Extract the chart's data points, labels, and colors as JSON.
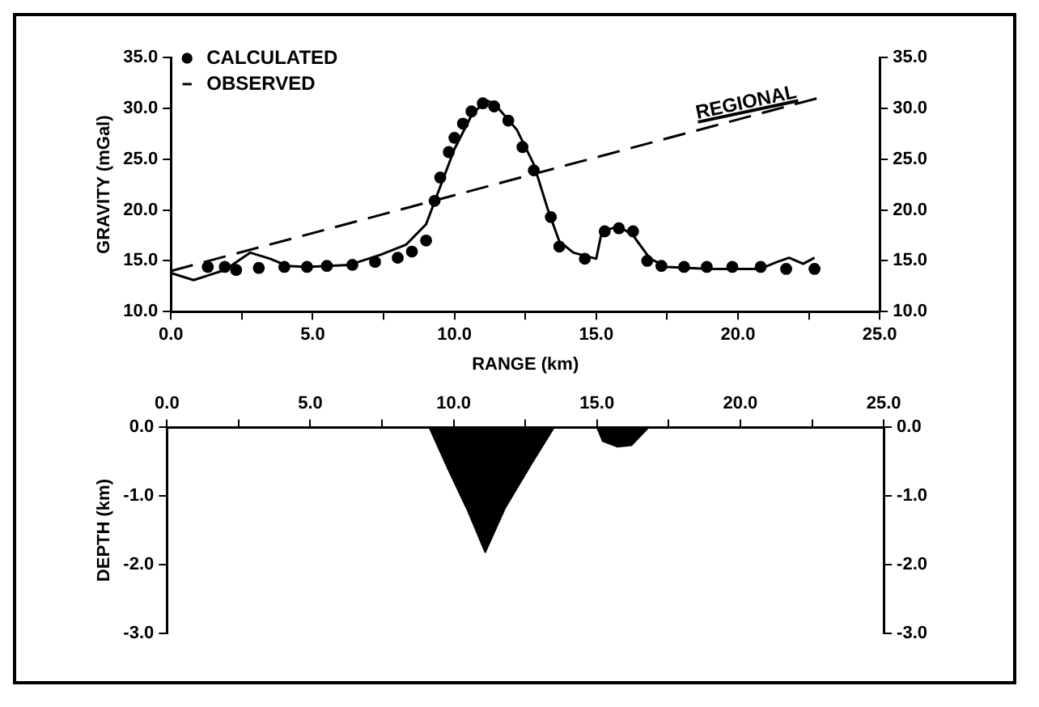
{
  "chart_data": [
    {
      "type": "line",
      "xlabel": "RANGE (km)",
      "ylabel": "GRAVITY (mGal)",
      "xlim": [
        0,
        25
      ],
      "xticks": [
        {
          "value": 0,
          "label": "0.0"
        },
        {
          "value": 2.5,
          "label": null
        },
        {
          "value": 5,
          "label": "5.0"
        },
        {
          "value": 7.5,
          "label": null
        },
        {
          "value": 10,
          "label": "10.0"
        },
        {
          "value": 12.5,
          "label": null
        },
        {
          "value": 15,
          "label": "15.0"
        },
        {
          "value": 17.5,
          "label": null
        },
        {
          "value": 20,
          "label": "20.0"
        },
        {
          "value": 22.5,
          "label": null
        },
        {
          "value": 25,
          "label": "25.0"
        }
      ],
      "ylim": [
        10,
        35
      ],
      "yticks": [
        {
          "value": 10,
          "label": "10.0"
        },
        {
          "value": 15,
          "label": "15.0"
        },
        {
          "value": 20,
          "label": "20.0"
        },
        {
          "value": 25,
          "label": "25.0"
        },
        {
          "value": 30,
          "label": "30.0"
        },
        {
          "value": 35,
          "label": "35.0"
        }
      ],
      "y2lim": [
        10,
        35
      ],
      "y2ticks": [
        {
          "value": 10,
          "label": "10.0"
        },
        {
          "value": 15,
          "label": "15.0"
        },
        {
          "value": 20,
          "label": "20.0"
        },
        {
          "value": 25,
          "label": "25.0"
        },
        {
          "value": 30,
          "label": "30.0"
        },
        {
          "value": 35,
          "label": "35.0"
        }
      ],
      "grid": false,
      "legend": "top left",
      "annotations": [
        {
          "text": "REGIONAL",
          "x": 20.3,
          "y": 29.6
        }
      ],
      "series": [
        {
          "name": "CALCULATED",
          "type": "scatter",
          "marker": "circle",
          "color": "#000000",
          "x": [
            1.3,
            1.9,
            2.3,
            3.1,
            4.0,
            4.8,
            5.5,
            6.4,
            7.2,
            8.0,
            8.5,
            9.0,
            9.3,
            9.5,
            9.8,
            10.0,
            10.3,
            10.6,
            11.0,
            11.4,
            11.9,
            12.4,
            12.8,
            13.4,
            13.7,
            14.6,
            15.3,
            15.8,
            16.3,
            16.8,
            17.3,
            18.1,
            18.9,
            19.8,
            20.8,
            21.7,
            22.7
          ],
          "values": [
            14.4,
            14.4,
            14.1,
            14.3,
            14.4,
            14.4,
            14.5,
            14.6,
            14.9,
            15.3,
            15.9,
            17.0,
            20.9,
            23.2,
            25.7,
            27.1,
            28.5,
            29.7,
            30.5,
            30.2,
            28.8,
            26.2,
            23.9,
            19.3,
            16.4,
            15.2,
            17.9,
            18.2,
            17.9,
            15.0,
            14.5,
            14.4,
            14.4,
            14.4,
            14.4,
            14.2,
            14.2
          ]
        },
        {
          "name": "OBSERVED",
          "line_style": "solid",
          "color": "#000000",
          "x": [
            0,
            0.8,
            1.9,
            2.8,
            3.5,
            4.1,
            4.8,
            6.3,
            7.4,
            8.3,
            9.0,
            9.5,
            10.0,
            10.6,
            11.1,
            11.4,
            12.2,
            12.8,
            13.3,
            13.7,
            14.2,
            15.0,
            15.2,
            15.8,
            16.3,
            16.9,
            17.5,
            19.0,
            20.8,
            21.3,
            21.8,
            22.3,
            22.7
          ],
          "values": [
            13.8,
            13.1,
            14.1,
            15.8,
            15.2,
            14.5,
            14.4,
            14.6,
            15.6,
            16.6,
            18.6,
            22.3,
            26.0,
            29.3,
            30.8,
            30.5,
            27.9,
            24.5,
            20.0,
            16.9,
            15.8,
            15.2,
            17.9,
            18.4,
            17.5,
            15.2,
            14.4,
            14.2,
            14.2,
            14.8,
            15.3,
            14.7,
            15.3
          ]
        },
        {
          "type": "line",
          "line_style": "dashed",
          "color": "#000000",
          "x": [
            0,
            22.8
          ],
          "values": [
            14.0,
            31.0
          ]
        }
      ]
    },
    {
      "type": "area",
      "ylabel": "DEPTH (km)",
      "xlim": [
        0,
        25
      ],
      "xticks": [
        {
          "value": 0,
          "label": "0.0"
        },
        {
          "value": 2.5,
          "label": null
        },
        {
          "value": 5,
          "label": "5.0"
        },
        {
          "value": 7.5,
          "label": null
        },
        {
          "value": 10,
          "label": "10.0"
        },
        {
          "value": 12.5,
          "label": null
        },
        {
          "value": 15,
          "label": "15.0"
        },
        {
          "value": 17.5,
          "label": null
        },
        {
          "value": 20,
          "label": "20.0"
        },
        {
          "value": 22.5,
          "label": null
        },
        {
          "value": 25,
          "label": "25.0"
        }
      ],
      "ylim": [
        -3,
        0
      ],
      "yticks": [
        {
          "value": -3,
          "label": "-3.0"
        },
        {
          "value": -2,
          "label": "-2.0"
        },
        {
          "value": -1,
          "label": "-1.0"
        },
        {
          "value": 0,
          "label": "0.0"
        }
      ],
      "y2lim": [
        -3,
        0
      ],
      "y2ticks": [
        {
          "value": -3,
          "label": "-3.0"
        },
        {
          "value": -2,
          "label": "-2.0"
        },
        {
          "value": -1,
          "label": "-1.0"
        },
        {
          "value": 0,
          "label": "0.0"
        }
      ],
      "grid": false,
      "series": [
        {
          "color": "#000000",
          "x": [
            0,
            9.15,
            9.8,
            10.5,
            11.1,
            11.8,
            12.7,
            13.5,
            15.0,
            15.2,
            15.7,
            16.2,
            16.8,
            25
          ],
          "values": [
            0,
            0,
            -0.6,
            -1.22,
            -1.82,
            -1.17,
            -0.54,
            0,
            0,
            -0.2,
            -0.28,
            -0.26,
            0,
            0
          ]
        }
      ]
    }
  ]
}
